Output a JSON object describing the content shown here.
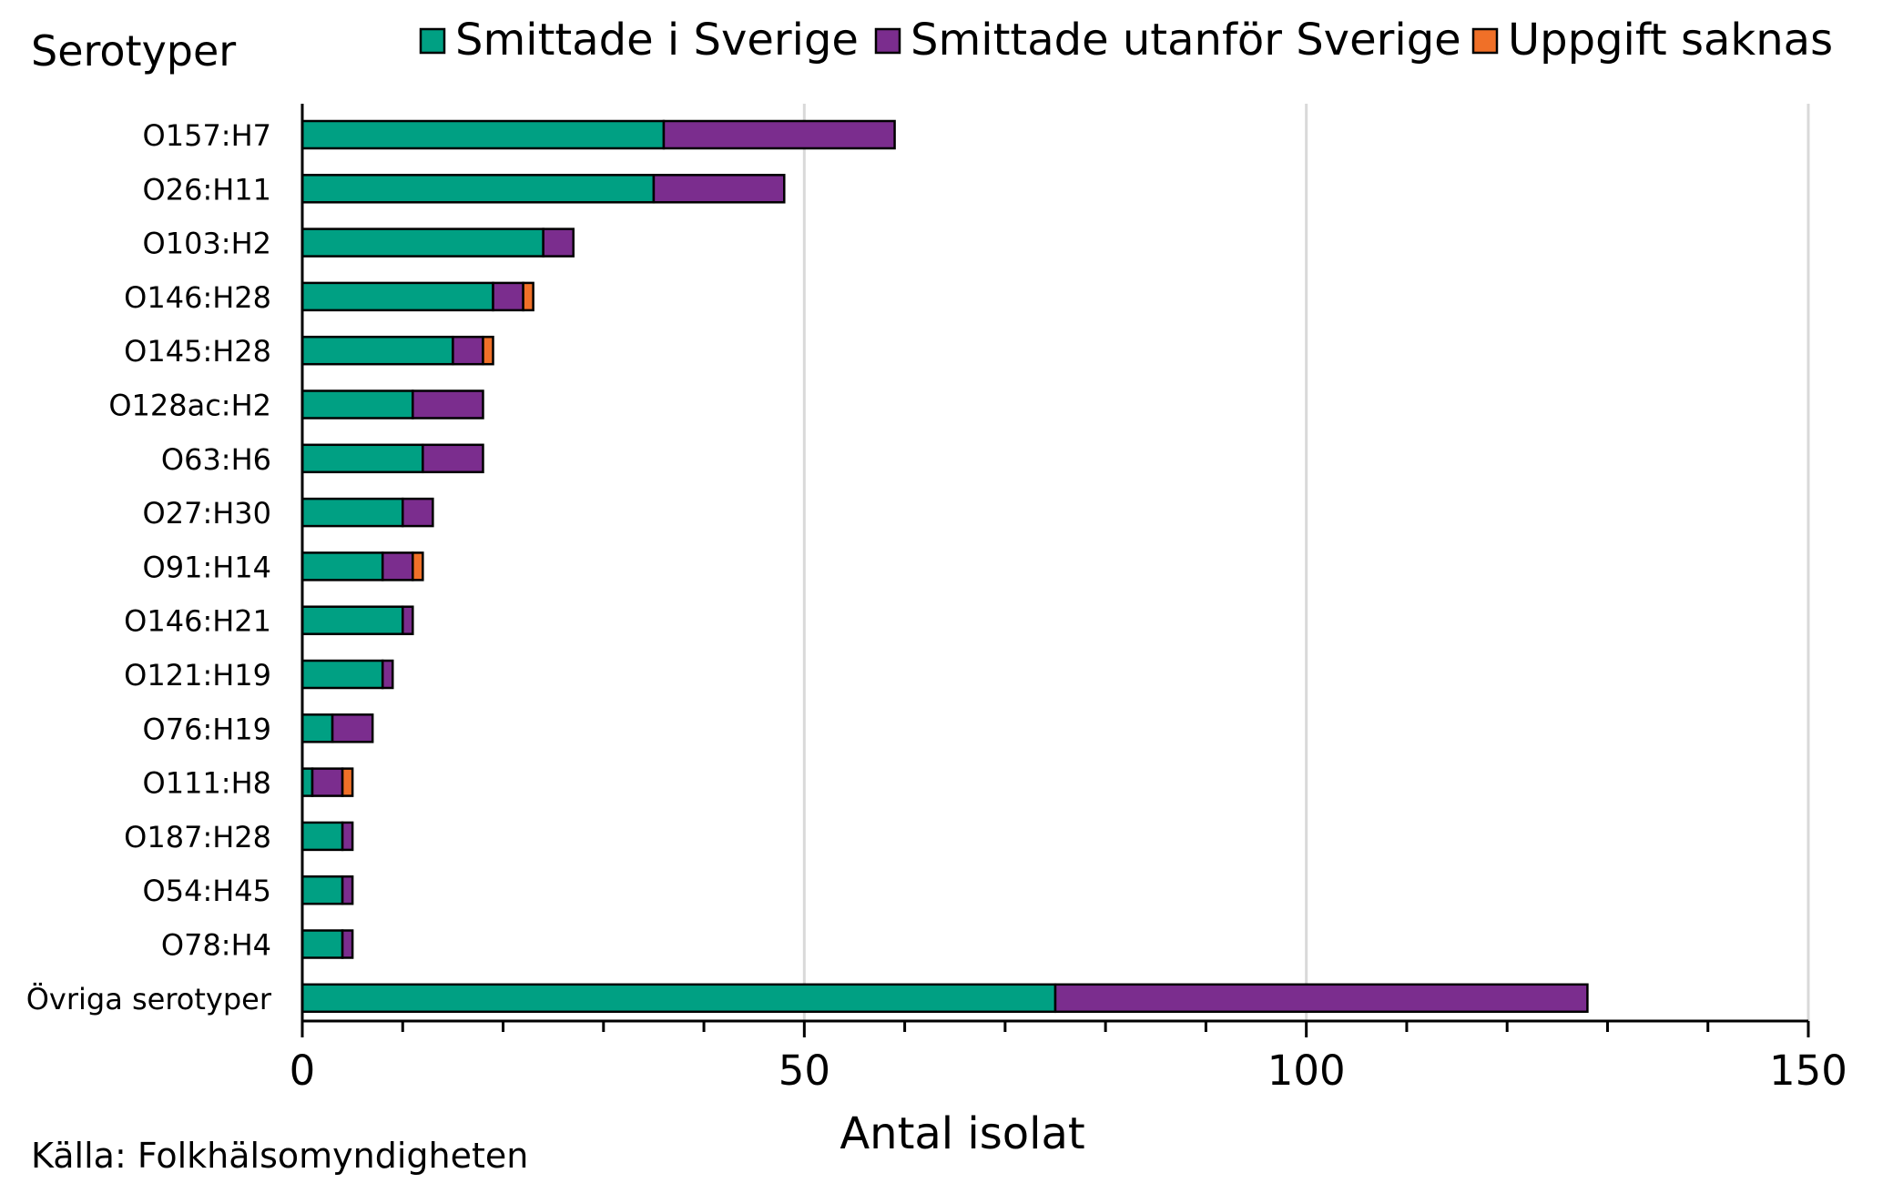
{
  "chart_data": {
    "type": "bar",
    "orientation": "horizontal",
    "stacked": true,
    "corner_label": "Serotyper",
    "xlabel": "Antal isolat",
    "xlim": [
      0,
      150
    ],
    "x_ticks": [
      0,
      50,
      100,
      150
    ],
    "grid": true,
    "legend_position": "top",
    "source": "Källa: Folkhälsomyndigheten",
    "categories": [
      "O157:H7",
      "O26:H11",
      "O103:H2",
      "O146:H28",
      "O145:H28",
      "O128ac:H2",
      "O63:H6",
      "O27:H30",
      "O91:H14",
      "O146:H21",
      "O121:H19",
      "O76:H19",
      "O111:H8",
      "O187:H28",
      "O54:H45",
      "O78:H4",
      "Övriga serotyper"
    ],
    "series": [
      {
        "name": "Smittade i Sverige",
        "color": "#00A083",
        "values": [
          36,
          35,
          24,
          19,
          15,
          11,
          12,
          10,
          8,
          10,
          8,
          3,
          1,
          4,
          4,
          4,
          75
        ]
      },
      {
        "name": "Smittade utanför Sverige",
        "color": "#7B2D8E",
        "values": [
          23,
          13,
          3,
          3,
          3,
          7,
          6,
          3,
          3,
          1,
          1,
          4,
          3,
          1,
          1,
          1,
          53
        ]
      },
      {
        "name": "Uppgift saknas",
        "color": "#F07028",
        "values": [
          0,
          0,
          0,
          1,
          1,
          0,
          0,
          0,
          1,
          0,
          0,
          0,
          1,
          0,
          0,
          0,
          0
        ]
      }
    ]
  }
}
